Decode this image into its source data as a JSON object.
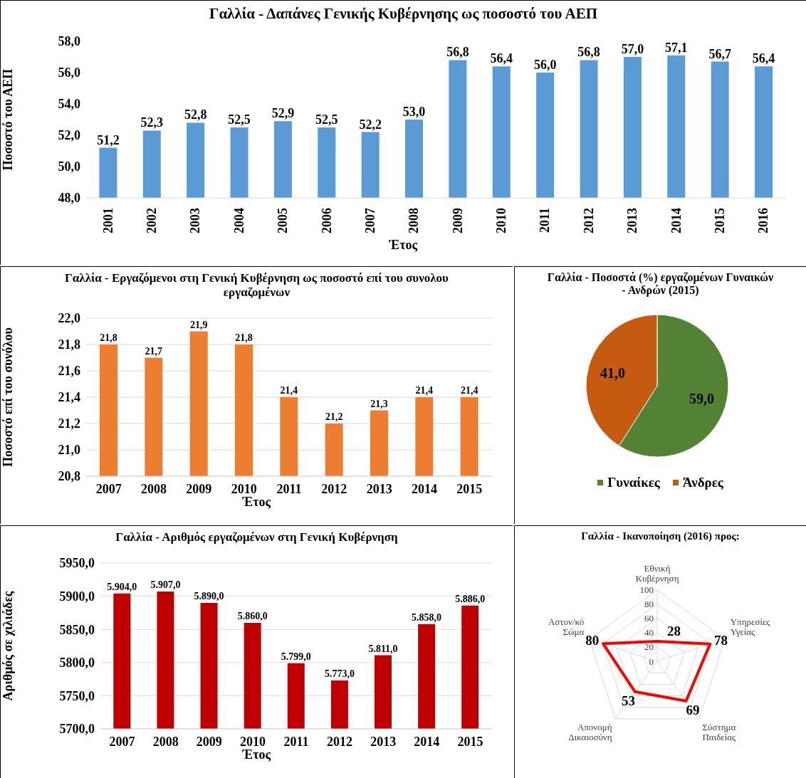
{
  "chart_data": [
    {
      "type": "bar",
      "title": "Γαλλία - Δαπάνες Γενικής Κυβέρνησης ως ποσοστό του ΑΕΠ",
      "xlabel": "Έτος",
      "ylabel": "Ποσοστό του ΑΕΠ",
      "categories": [
        "2001",
        "2002",
        "2003",
        "2004",
        "2005",
        "2006",
        "2007",
        "2008",
        "2009",
        "2010",
        "2011",
        "2012",
        "2013",
        "2014",
        "2015",
        "2016"
      ],
      "values": [
        51.2,
        52.3,
        52.8,
        52.5,
        52.9,
        52.5,
        52.2,
        53.0,
        56.8,
        56.4,
        56.0,
        56.8,
        57.0,
        57.1,
        56.7,
        56.4
      ],
      "value_labels": [
        "51,2",
        "52,3",
        "52,8",
        "52,5",
        "52,9",
        "52,5",
        "52,2",
        "53,0",
        "56,8",
        "56,4",
        "56,0",
        "56,8",
        "57,0",
        "57,1",
        "56,7",
        "56,4"
      ],
      "color": "#5b9bd5",
      "ylim": [
        48,
        58
      ],
      "yticks": [
        {
          "value": 48,
          "label": "48,0"
        },
        {
          "value": 50,
          "label": "50,0"
        },
        {
          "value": 52,
          "label": "52,0"
        },
        {
          "value": 54,
          "label": "54,0"
        },
        {
          "value": 56,
          "label": "56,0"
        },
        {
          "value": 58,
          "label": "58,0"
        }
      ]
    },
    {
      "type": "bar",
      "title": "Γαλλία -  Εργαζόμενοι στη Γενική Κυβέρνηση ως ποσοστό επί του συνολου εργαζομένων",
      "xlabel": "Έτος",
      "ylabel": "Ποσοστό επί του συνόλου",
      "categories": [
        "2007",
        "2008",
        "2009",
        "2010",
        "2011",
        "2012",
        "2013",
        "2014",
        "2015"
      ],
      "values": [
        21.8,
        21.7,
        21.9,
        21.8,
        21.4,
        21.2,
        21.3,
        21.4,
        21.4
      ],
      "value_labels": [
        "21,8",
        "21,7",
        "21,9",
        "21,8",
        "21,4",
        "21,2",
        "21,3",
        "21,4",
        "21,4"
      ],
      "color": "#ed7d31",
      "ylim": [
        20.8,
        22.0
      ],
      "yticks": [
        {
          "value": 20.8,
          "label": "20,8"
        },
        {
          "value": 21.0,
          "label": "21,0"
        },
        {
          "value": 21.2,
          "label": "21,2"
        },
        {
          "value": 21.4,
          "label": "21,4"
        },
        {
          "value": 21.6,
          "label": "21,6"
        },
        {
          "value": 21.8,
          "label": "21,8"
        },
        {
          "value": 22.0,
          "label": "22,0"
        }
      ],
      "grid": "y"
    },
    {
      "type": "pie",
      "title": "Γαλλία - Ποσοστά (%) εργαζομένων Γυναικών - Ανδρών (2015)",
      "categories": [
        "Γυναίκες",
        "Άνδρες"
      ],
      "values": [
        59.0,
        41.0
      ],
      "value_labels": [
        "59,0",
        "41,0"
      ],
      "colors": [
        "#548235",
        "#c55a11"
      ],
      "legend": "bottom"
    },
    {
      "type": "bar",
      "title": "Γαλλία -  Αριθμός εργαζομένων στη Γενική Κυβέρνηση",
      "xlabel": "Έτος",
      "ylabel": "Αριθμός σε χιλιάδες",
      "categories": [
        "2007",
        "2008",
        "2009",
        "2010",
        "2011",
        "2012",
        "2013",
        "2014",
        "2015"
      ],
      "values": [
        5904.0,
        5907.0,
        5890.0,
        5860.0,
        5799.0,
        5773.0,
        5811.0,
        5858.0,
        5886.0
      ],
      "value_labels": [
        "5.904,0",
        "5.907,0",
        "5.890,0",
        "5.860,0",
        "5.799,0",
        "5.773,0",
        "5.811,0",
        "5.858,0",
        "5.886,0"
      ],
      "color": "#c00000",
      "ylim": [
        5700,
        5950
      ],
      "yticks": [
        {
          "value": 5700,
          "label": "5700,0"
        },
        {
          "value": 5750,
          "label": "5750,0"
        },
        {
          "value": 5800,
          "label": "5800,0"
        },
        {
          "value": 5850,
          "label": "5850,0"
        },
        {
          "value": 5900,
          "label": "5900,0"
        },
        {
          "value": 5950,
          "label": "5950,0"
        }
      ],
      "grid": "y"
    },
    {
      "type": "radar",
      "title": "Γαλλία - Ικανοποίηση (2016) προς:",
      "categories": [
        "Εθνική Κυβέρνηση",
        "Υπηρεσίες Υγείας",
        "Σύστημα Παιδείας",
        "Απονομή Δικαιοσύνη",
        "Αστυν/κό Σώμα"
      ],
      "values": [
        28,
        78,
        69,
        53,
        80
      ],
      "color": "#ff0000",
      "ylim": [
        0,
        100
      ],
      "yticks": [
        0,
        20,
        40,
        60,
        80,
        100
      ],
      "grid": true,
      "data_labels": true
    }
  ]
}
